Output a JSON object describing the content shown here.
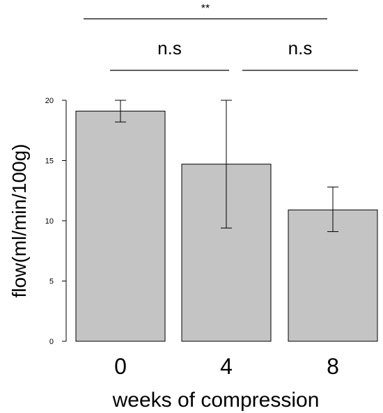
{
  "colors": {
    "bar_fill": "#c4c4c4",
    "stroke": "#000000",
    "background": "#ffffff"
  },
  "chart_data": {
    "type": "bar",
    "title": "",
    "xlabel": "weeks of compression",
    "ylabel": "flow(ml/min/100g)",
    "categories": [
      "0",
      "4",
      "8"
    ],
    "values": [
      19.1,
      14.7,
      10.9
    ],
    "error_low": [
      18.2,
      9.4,
      9.1
    ],
    "error_high": [
      20.0,
      20.0,
      12.8
    ],
    "ylim": [
      0,
      20
    ],
    "yticks": [
      "0",
      "5",
      "10",
      "15",
      "20"
    ],
    "grid": false,
    "significance": [
      {
        "label": "**",
        "from": "0",
        "to": "8"
      },
      {
        "label": "n.s",
        "from": "0",
        "to": "4"
      },
      {
        "label": "n.s",
        "from": "4",
        "to": "8"
      }
    ]
  }
}
